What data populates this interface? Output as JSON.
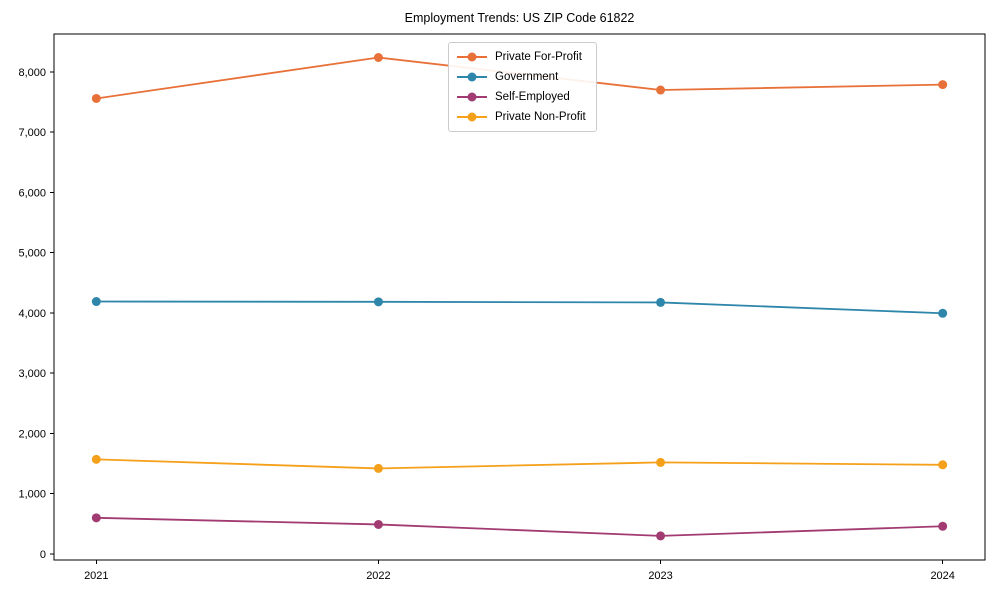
{
  "chart_data": {
    "type": "line",
    "title": "Employment Trends: US ZIP Code 61822",
    "x": [
      "2021",
      "2022",
      "2023",
      "2024"
    ],
    "series": [
      {
        "name": "Private For-Profit",
        "color": "#E8713A",
        "values": [
          7560,
          8240,
          7700,
          7790
        ]
      },
      {
        "name": "Government",
        "color": "#2E86AB",
        "values": [
          4190,
          4185,
          4175,
          3995
        ]
      },
      {
        "name": "Self-Employed",
        "color": "#A23B72",
        "values": [
          600,
          490,
          300,
          460
        ]
      },
      {
        "name": "Private Non-Profit",
        "color": "#F5A01A",
        "values": [
          1570,
          1420,
          1520,
          1480
        ]
      }
    ],
    "xlabel": "",
    "ylabel": "",
    "yticks": [
      0,
      1000,
      2000,
      3000,
      4000,
      5000,
      6000,
      7000,
      8000
    ],
    "ytick_labels": [
      "0",
      "1,000",
      "2,000",
      "3,000",
      "4,000",
      "5,000",
      "6,000",
      "7,000",
      "8,000"
    ],
    "ylim": [
      -100,
      8630
    ],
    "grid": false,
    "legend_position": "upper center",
    "marker": "circle",
    "axis_color": "#000000",
    "background_color": "#ffffff"
  }
}
